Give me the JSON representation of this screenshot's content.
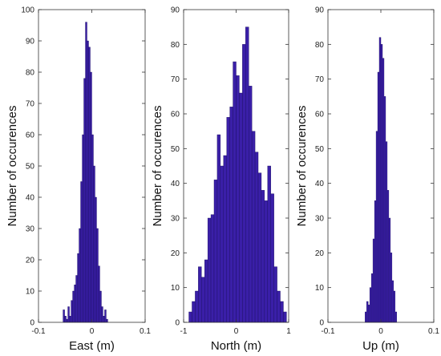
{
  "chart_data": [
    {
      "type": "histogram",
      "xlabel": "East (m)",
      "ylabel": "Number of occurences",
      "xlim": [
        -0.1,
        0.1
      ],
      "ylim": [
        0,
        100
      ],
      "xticks": [
        "-0.1",
        "0",
        "0.1"
      ],
      "yticks": [
        "0",
        "10",
        "20",
        "30",
        "40",
        "50",
        "60",
        "70",
        "80",
        "90",
        "100"
      ],
      "bar_color": "#3A1FA8",
      "bin_edges": [
        -0.054,
        -0.051,
        -0.048,
        -0.045,
        -0.042,
        -0.039,
        -0.036,
        -0.033,
        -0.03,
        -0.027,
        -0.024,
        -0.021,
        -0.018,
        -0.015,
        -0.012,
        -0.009,
        -0.006,
        -0.003,
        0.0,
        0.003,
        0.006,
        0.009,
        0.012,
        0.015,
        0.018,
        0.021,
        0.024,
        0.027,
        0.03
      ],
      "counts": [
        4,
        2,
        1,
        5,
        2,
        7,
        10,
        12,
        15,
        22,
        30,
        45,
        60,
        78,
        96,
        90,
        88,
        80,
        60,
        50,
        40,
        30,
        18,
        10,
        5,
        2,
        4,
        1
      ]
    },
    {
      "type": "histogram",
      "xlabel": "North (m)",
      "ylabel": "Number of occurences",
      "xlim": [
        -1,
        1
      ],
      "ylim": [
        0,
        90
      ],
      "xticks": [
        "-1",
        "0",
        "1"
      ],
      "yticks": [
        "0",
        "10",
        "20",
        "30",
        "40",
        "50",
        "60",
        "70",
        "80",
        "90"
      ],
      "bar_color": "#3A1FA8",
      "bin_edges": [
        -0.9,
        -0.84,
        -0.78,
        -0.72,
        -0.66,
        -0.6,
        -0.54,
        -0.48,
        -0.42,
        -0.36,
        -0.3,
        -0.24,
        -0.18,
        -0.12,
        -0.06,
        0.0,
        0.06,
        0.12,
        0.18,
        0.24,
        0.3,
        0.36,
        0.42,
        0.48,
        0.54,
        0.6,
        0.66,
        0.72,
        0.78,
        0.84,
        0.9,
        0.96
      ],
      "counts": [
        3,
        6,
        9,
        16,
        13,
        18,
        30,
        31,
        41,
        54,
        45,
        48,
        59,
        62,
        75,
        71,
        66,
        80,
        85,
        68,
        55,
        49,
        43,
        38,
        35,
        45,
        37,
        16,
        9,
        6,
        3
      ]
    },
    {
      "type": "histogram",
      "xlabel": "Up (m)",
      "ylabel": "Number of occurences",
      "xlim": [
        -0.1,
        0.1
      ],
      "ylim": [
        0,
        90
      ],
      "xticks": [
        "-0.1",
        "0",
        "0.1"
      ],
      "yticks": [
        "0",
        "10",
        "20",
        "30",
        "40",
        "50",
        "60",
        "70",
        "80",
        "90"
      ],
      "bar_color": "#3A1FA8",
      "bin_edges": [
        -0.03,
        -0.027,
        -0.024,
        -0.021,
        -0.018,
        -0.015,
        -0.012,
        -0.009,
        -0.006,
        -0.003,
        0.0,
        0.003,
        0.006,
        0.009,
        0.012,
        0.015,
        0.018,
        0.021,
        0.024,
        0.027,
        0.03
      ],
      "counts": [
        3,
        6,
        5,
        10,
        14,
        24,
        35,
        55,
        72,
        82,
        80,
        76,
        65,
        52,
        38,
        30,
        20,
        12,
        9,
        3
      ]
    }
  ]
}
